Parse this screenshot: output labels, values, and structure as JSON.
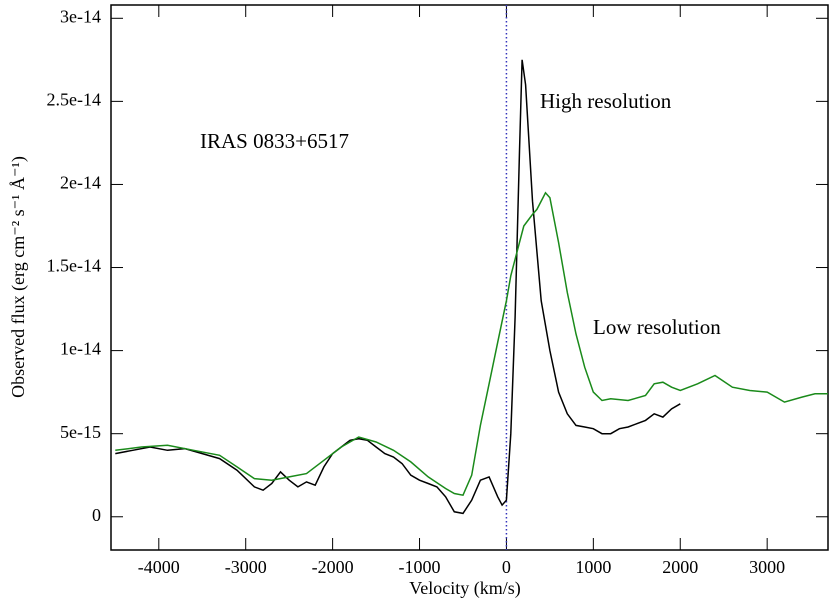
{
  "chart_data": {
    "type": "line",
    "xlabel": "Velocity  (km/s)",
    "ylabel": "Observed flux (erg cm⁻² s⁻¹ Å⁻¹)",
    "annotations": [
      "IRAS  0833+6517"
    ],
    "xlim": [
      -4550,
      3700
    ],
    "ylim": [
      -2e-15,
      3.08e-14
    ],
    "xticks": [
      -4000,
      -3000,
      -2000,
      -1000,
      0,
      1000,
      2000,
      3000
    ],
    "yticks": [
      0,
      {
        "value": 5e-15,
        "label": "5e-15"
      },
      {
        "value": 1e-14,
        "label": "1e-14"
      },
      {
        "value": 1.5e-14,
        "label": "1.5e-14"
      },
      {
        "value": 2e-14,
        "label": "2e-14"
      },
      {
        "value": 2.5e-14,
        "label": "2.5e-14"
      },
      {
        "value": 3e-14,
        "label": "3e-14"
      }
    ],
    "vline_x": 0,
    "vline_color": "#3333bb",
    "series": [
      {
        "name": "High resolution",
        "color": "#000000",
        "x": [
          -4500,
          -4300,
          -4100,
          -3900,
          -3700,
          -3500,
          -3300,
          -3100,
          -2900,
          -2800,
          -2700,
          -2600,
          -2500,
          -2400,
          -2300,
          -2200,
          -2100,
          -2000,
          -1900,
          -1800,
          -1700,
          -1600,
          -1500,
          -1400,
          -1300,
          -1200,
          -1100,
          -1000,
          -900,
          -800,
          -700,
          -600,
          -500,
          -400,
          -300,
          -200,
          -100,
          -50,
          0,
          50,
          100,
          150,
          180,
          220,
          300,
          400,
          500,
          600,
          700,
          800,
          900,
          1000,
          1100,
          1200,
          1300,
          1400,
          1500,
          1600,
          1700,
          1800,
          1900,
          2000
        ],
        "values": [
          3.8e-15,
          4e-15,
          4.2e-15,
          4e-15,
          4.1e-15,
          3.8e-15,
          3.5e-15,
          2.8e-15,
          1.8e-15,
          1.6e-15,
          2e-15,
          2.7e-15,
          2.2e-15,
          1.8e-15,
          2.1e-15,
          1.9e-15,
          3e-15,
          3.8e-15,
          4.2e-15,
          4.6e-15,
          4.7e-15,
          4.6e-15,
          4.2e-15,
          3.8e-15,
          3.6e-15,
          3.2e-15,
          2.5e-15,
          2.2e-15,
          2e-15,
          1.8e-15,
          1.2e-15,
          3e-16,
          2e-16,
          1e-15,
          2.2e-15,
          2.4e-15,
          1.2e-15,
          7e-16,
          1e-15,
          5e-15,
          1.2e-14,
          2.2e-14,
          2.75e-14,
          2.6e-14,
          1.9e-14,
          1.3e-14,
          1e-14,
          7.5e-15,
          6.2e-15,
          5.5e-15,
          5.4e-15,
          5.3e-15,
          5e-15,
          5e-15,
          5.3e-15,
          5.4e-15,
          5.6e-15,
          5.8e-15,
          6.2e-15,
          6e-15,
          6.5e-15,
          6.8e-15
        ]
      },
      {
        "name": "Low resolution",
        "color": "#1a8a1a",
        "x": [
          -4500,
          -4200,
          -3900,
          -3600,
          -3300,
          -3100,
          -2900,
          -2700,
          -2500,
          -2300,
          -2100,
          -1900,
          -1700,
          -1500,
          -1300,
          -1100,
          -900,
          -700,
          -600,
          -500,
          -400,
          -300,
          -200,
          -100,
          0,
          50,
          100,
          200,
          300,
          350,
          400,
          450,
          500,
          600,
          700,
          800,
          900,
          1000,
          1100,
          1200,
          1400,
          1600,
          1700,
          1800,
          1900,
          2000,
          2200,
          2400,
          2600,
          2800,
          3000,
          3200,
          3400,
          3550,
          3700
        ],
        "values": [
          4e-15,
          4.2e-15,
          4.3e-15,
          4e-15,
          3.7e-15,
          3e-15,
          2.3e-15,
          2.2e-15,
          2.4e-15,
          2.6e-15,
          3.4e-15,
          4.2e-15,
          4.8e-15,
          4.5e-15,
          4e-15,
          3.3e-15,
          2.4e-15,
          1.7e-15,
          1.4e-15,
          1.3e-15,
          2.5e-15,
          5.5e-15,
          8e-15,
          1.05e-14,
          1.3e-14,
          1.45e-14,
          1.55e-14,
          1.75e-14,
          1.82e-14,
          1.85e-14,
          1.9e-14,
          1.95e-14,
          1.92e-14,
          1.65e-14,
          1.35e-14,
          1.1e-14,
          9e-15,
          7.5e-15,
          7e-15,
          7.1e-15,
          7e-15,
          7.3e-15,
          8e-15,
          8.1e-15,
          7.8e-15,
          7.6e-15,
          8e-15,
          8.5e-15,
          7.8e-15,
          7.6e-15,
          7.5e-15,
          6.9e-15,
          7.2e-15,
          7.4e-15,
          7.4e-15
        ]
      }
    ]
  }
}
